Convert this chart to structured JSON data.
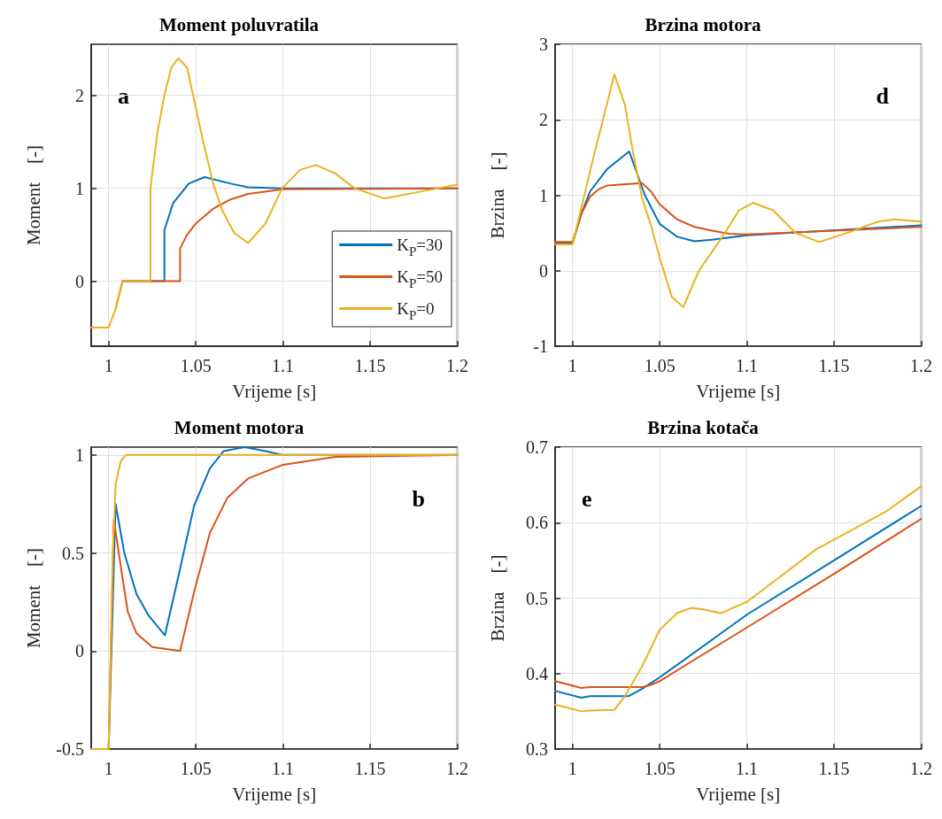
{
  "chart_data": [
    {
      "type": "line",
      "title": "Moment poluvratila",
      "xlabel": "Vrijeme [s]",
      "ylabel": "Moment    [-]",
      "annotations": [
        "a"
      ],
      "xlim": [
        0.99,
        1.2
      ],
      "xticks": [
        1,
        1.05,
        1.1,
        1.15,
        1.2
      ],
      "ylim": [
        -0.7,
        2.55
      ],
      "yticks": [
        0,
        1,
        2
      ],
      "grid": true,
      "legend": "bottom right",
      "series": [
        {
          "name": "K$_{P}$=30",
          "color": "#0072bd",
          "x": [
            1.008,
            1.032,
            1.032,
            1.037,
            1.046,
            1.055,
            1.07,
            1.08,
            1.1,
            1.2
          ],
          "values": [
            0,
            0,
            0.55,
            0.84,
            1.05,
            1.12,
            1.05,
            1.01,
            1.0,
            1.0
          ]
        },
        {
          "name": "K$_{P}$=50",
          "color": "#d95319",
          "x": [
            1.004,
            1.008,
            1.041,
            1.041,
            1.045,
            1.05,
            1.06,
            1.07,
            1.08,
            1.1,
            1.2
          ],
          "values": [
            -0.3,
            0,
            0,
            0.35,
            0.5,
            0.62,
            0.78,
            0.88,
            0.94,
            0.99,
            1.0
          ]
        },
        {
          "name": "K$_{P}$=0",
          "color": "#edb120",
          "x": [
            0.99,
            1.0,
            1.004,
            1.008,
            1.024,
            1.024,
            1.028,
            1.032,
            1.036,
            1.04,
            1.045,
            1.054,
            1.06,
            1.065,
            1.072,
            1.08,
            1.09,
            1.0995,
            1.11,
            1.119,
            1.13,
            1.141,
            1.158,
            1.175,
            1.2
          ],
          "values": [
            -0.5,
            -0.5,
            -0.3,
            0,
            0,
            1.0,
            1.6,
            2.0,
            2.3,
            2.4,
            2.3,
            1.52,
            1.05,
            0.77,
            0.52,
            0.41,
            0.62,
            1.0,
            1.2,
            1.25,
            1.16,
            1.0,
            0.89,
            0.95,
            1.04
          ]
        }
      ]
    },
    {
      "type": "line",
      "title": "Brzina motora",
      "xlabel": "Vrijeme [s]",
      "ylabel": "Brzina    [-]",
      "annotations": [
        "d"
      ],
      "xlim": [
        0.99,
        1.2
      ],
      "xticks": [
        1,
        1.05,
        1.1,
        1.15,
        1.2
      ],
      "ylim": [
        -1,
        3
      ],
      "yticks": [
        -1,
        0,
        1,
        2,
        3
      ],
      "grid": true,
      "series": [
        {
          "color": "#0072bd",
          "x": [
            0.99,
            1.0,
            1.005,
            1.01,
            1.02,
            1.0325,
            1.0415,
            1.05,
            1.06,
            1.07,
            1.08,
            1.1,
            1.2
          ],
          "values": [
            0.37,
            0.36,
            0.75,
            1.05,
            1.35,
            1.58,
            1.0,
            0.62,
            0.45,
            0.39,
            0.41,
            0.47,
            0.6
          ]
        },
        {
          "color": "#d95319",
          "x": [
            0.99,
            1.0,
            1.005,
            1.01,
            1.015,
            1.02,
            1.04,
            1.045,
            1.05,
            1.06,
            1.07,
            1.08,
            1.09,
            1.1,
            1.2
          ],
          "values": [
            0.38,
            0.38,
            0.75,
            0.98,
            1.08,
            1.13,
            1.16,
            1.05,
            0.88,
            0.68,
            0.58,
            0.53,
            0.49,
            0.48,
            0.58
          ]
        },
        {
          "color": "#edb120",
          "x": [
            0.99,
            1.0,
            1.012,
            1.024,
            1.03,
            1.035,
            1.04,
            1.045,
            1.05,
            1.057,
            1.0636,
            1.0725,
            1.086,
            1.0955,
            1.1035,
            1.115,
            1.128,
            1.1415,
            1.16,
            1.175,
            1.185,
            1.2
          ],
          "values": [
            0.35,
            0.35,
            1.5,
            2.6,
            2.2,
            1.53,
            0.95,
            0.6,
            0.17,
            -0.35,
            -0.48,
            0.0,
            0.45,
            0.8,
            0.9,
            0.8,
            0.5,
            0.38,
            0.52,
            0.65,
            0.68,
            0.65
          ]
        }
      ]
    },
    {
      "type": "line",
      "title": "Moment motora",
      "xlabel": "Vrijeme [s]",
      "ylabel": "Moment    [-]",
      "annotations": [
        "b"
      ],
      "xlim": [
        0.99,
        1.2
      ],
      "xticks": [
        1,
        1.05,
        1.1,
        1.15,
        1.2
      ],
      "ylim": [
        -0.5,
        1.04
      ],
      "yticks": [
        -0.5,
        0,
        0.5,
        1
      ],
      "grid": true,
      "series": [
        {
          "color": "#0072bd",
          "x": [
            0.99,
            1.0,
            1.004,
            1.009,
            1.016,
            1.023,
            1.0323,
            1.0405,
            1.049,
            1.058,
            1.066,
            1.078,
            1.09,
            1.1,
            1.2
          ],
          "values": [
            -0.5,
            -0.5,
            0.75,
            0.5,
            0.29,
            0.18,
            0.08,
            0.4,
            0.74,
            0.93,
            1.02,
            1.04,
            1.02,
            1.0,
            1.0
          ]
        },
        {
          "color": "#d95319",
          "x": [
            0.99,
            1.0,
            1.003,
            1.0075,
            1.011,
            1.016,
            1.025,
            1.041,
            1.049,
            1.058,
            1.068,
            1.08,
            1.1,
            1.13,
            1.2
          ],
          "values": [
            -0.5,
            -0.5,
            0.67,
            0.4,
            0.2,
            0.09,
            0.02,
            0.0,
            0.3,
            0.6,
            0.78,
            0.88,
            0.95,
            0.99,
            1.0
          ]
        },
        {
          "color": "#edb120",
          "x": [
            0.99,
            1.0,
            1.0023,
            1.004,
            1.007,
            1.01,
            1.2
          ],
          "values": [
            -0.5,
            -0.5,
            0.47,
            0.85,
            0.97,
            1.0,
            1.0
          ]
        }
      ]
    },
    {
      "type": "line",
      "title": "Brzina kotača",
      "xlabel": "Vrijeme [s]",
      "ylabel": "Brzina    [-]",
      "annotations": [
        "e"
      ],
      "xlim": [
        0.99,
        1.2
      ],
      "xticks": [
        1,
        1.05,
        1.1,
        1.15,
        1.2
      ],
      "ylim": [
        0.3,
        0.7
      ],
      "yticks": [
        0.3,
        0.4,
        0.5,
        0.6,
        0.7
      ],
      "grid": true,
      "series": [
        {
          "color": "#0072bd",
          "x": [
            0.99,
            1.005,
            1.01,
            1.032,
            1.04,
            1.05,
            1.1,
            1.15,
            1.2
          ],
          "values": [
            0.377,
            0.368,
            0.37,
            0.37,
            0.38,
            0.395,
            0.478,
            0.55,
            0.622
          ]
        },
        {
          "color": "#d95319",
          "x": [
            0.99,
            1.005,
            1.01,
            1.04,
            1.045,
            1.05,
            1.1,
            1.15,
            1.2
          ],
          "values": [
            0.39,
            0.381,
            0.382,
            0.382,
            0.385,
            0.39,
            0.461,
            0.532,
            0.605
          ]
        },
        {
          "color": "#edb120",
          "x": [
            0.99,
            1.005,
            1.01,
            1.024,
            1.03,
            1.04,
            1.05,
            1.06,
            1.068,
            1.075,
            1.085,
            1.1,
            1.12,
            1.14,
            1.16,
            1.18,
            1.2
          ],
          "values": [
            0.359,
            0.35,
            0.351,
            0.352,
            0.37,
            0.41,
            0.458,
            0.48,
            0.487,
            0.485,
            0.48,
            0.495,
            0.53,
            0.565,
            0.59,
            0.615,
            0.648
          ]
        }
      ]
    }
  ]
}
